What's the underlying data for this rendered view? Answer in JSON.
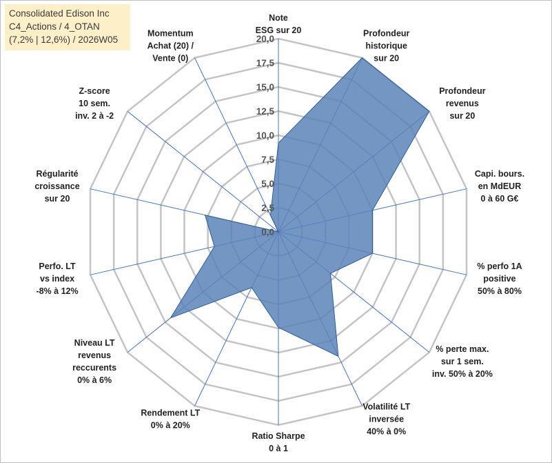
{
  "title_box": {
    "line1": "Consolidated Edison Inc",
    "line2": "C4_Actions / 4_OTAN",
    "line3": "(7,2% | 12,6%) / 2026W05"
  },
  "colors": {
    "fill": "#5b84b8",
    "outline": "#2f5d98",
    "grid": "#c4c4c4",
    "spoke": "#4472c4",
    "title_bg": "#fdefc8"
  },
  "chart_data": {
    "type": "radar",
    "rmin": 0,
    "rmax": 20,
    "grid": true,
    "ticks": [
      "0,0",
      "2,5",
      "5,0",
      "7,5",
      "10,0",
      "12,5",
      "15,0",
      "17,5",
      "20,0"
    ],
    "tick_values": [
      0,
      2.5,
      5,
      7.5,
      10,
      12.5,
      15,
      17.5,
      20
    ],
    "axes": [
      {
        "label": [
          "Note",
          "ESG sur 20"
        ],
        "value": 9.2
      },
      {
        "label": [
          "Profondeur",
          "historique",
          "sur 20"
        ],
        "value": 20.0
      },
      {
        "label": [
          "Profondeur",
          "revenus",
          "sur 20"
        ],
        "value": 20.0
      },
      {
        "label": [
          "Capi. bours.",
          "en MdEUR",
          "0 à 60 G€"
        ],
        "value": 10.0
      },
      {
        "label": [
          "% perfo 1A",
          "positive",
          "50% à 80%"
        ],
        "value": 10.0
      },
      {
        "label": [
          "% perte max.",
          "sur 1 sem.",
          "inv. 50% à 20%"
        ],
        "value": 6.9
      },
      {
        "label": [
          "Volatilité LT",
          "inversée",
          "40% à 0%"
        ],
        "value": 14.3
      },
      {
        "label": [
          "Ratio Sharpe",
          "0 à 1"
        ],
        "value": 9.9
      },
      {
        "label": [
          "Rendement LT",
          "0% à 20%"
        ],
        "value": 6.4
      },
      {
        "label": [
          "Niveau LT",
          "revenus",
          "reccurents",
          "0% à 6%"
        ],
        "value": 14.3
      },
      {
        "label": [
          "Perfo. LT",
          "vs index",
          "-8% à 12%"
        ],
        "value": 6.8
      },
      {
        "label": [
          "Régularité",
          "croissance",
          "sur 20"
        ],
        "value": 7.8
      },
      {
        "label": [
          "Z-score",
          "10 sem.",
          "inv. 2 à -2"
        ],
        "value": 0.0
      },
      {
        "label": [
          "Momentum",
          "Achat (20) /",
          "Vente (0)"
        ],
        "value": 1.9
      }
    ]
  }
}
